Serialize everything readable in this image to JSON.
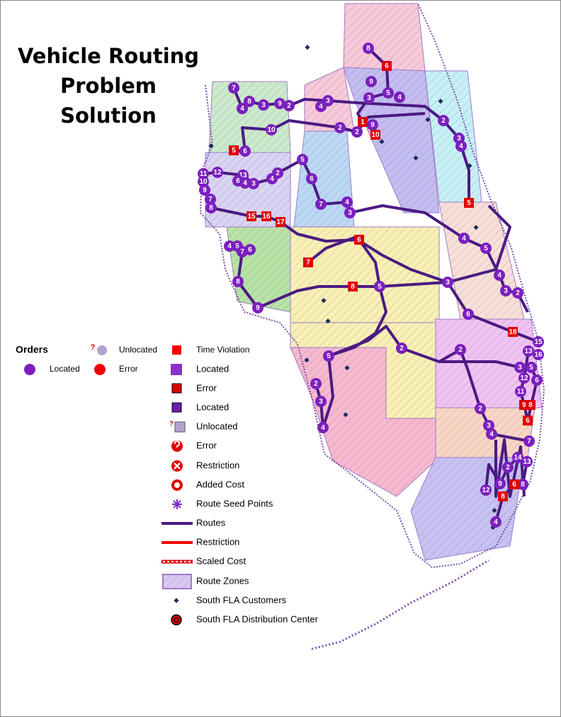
{
  "title": "Vehicle Routing Problem Solution",
  "legend": {
    "heading": "Orders",
    "question_mark": "?",
    "orders": [
      "Unlocated",
      "Located",
      "Error"
    ],
    "items": [
      "Time Violation",
      "Located",
      "Error",
      "Located",
      "Unlocated",
      "Error",
      "Restriction",
      "Added Cost",
      "Route Seed Points",
      "Routes",
      "Restriction",
      "Scaled Cost",
      "Route Zones",
      "South FLA Customers",
      "South FLA Distribution Center"
    ]
  },
  "stops": [
    {
      "label": "8",
      "kind": "order"
    },
    {
      "label": "6",
      "kind": "violation"
    },
    {
      "label": "9",
      "kind": "order"
    },
    {
      "label": "3",
      "kind": "order"
    },
    {
      "label": "5",
      "kind": "order"
    },
    {
      "label": "4",
      "kind": "order"
    },
    {
      "label": "3",
      "kind": "order"
    },
    {
      "label": "4",
      "kind": "order"
    },
    {
      "label": "2",
      "kind": "order"
    },
    {
      "label": "9",
      "kind": "order"
    },
    {
      "label": "3",
      "kind": "order"
    },
    {
      "label": "8",
      "kind": "order"
    },
    {
      "label": "4",
      "kind": "order"
    },
    {
      "label": "7",
      "kind": "order"
    },
    {
      "label": "10",
      "kind": "order"
    },
    {
      "label": "5",
      "kind": "violation"
    },
    {
      "label": "6",
      "kind": "order"
    },
    {
      "label": "2",
      "kind": "order"
    },
    {
      "label": "2",
      "kind": "order"
    },
    {
      "label": "1",
      "kind": "violation"
    },
    {
      "label": "9",
      "kind": "order"
    },
    {
      "label": "10",
      "kind": "violation"
    },
    {
      "label": "2",
      "kind": "order"
    },
    {
      "label": "3",
      "kind": "order"
    },
    {
      "label": "4",
      "kind": "order"
    },
    {
      "label": "5",
      "kind": "order"
    },
    {
      "label": "6",
      "kind": "order"
    },
    {
      "label": "2",
      "kind": "order"
    },
    {
      "label": "4",
      "kind": "order"
    },
    {
      "label": "11",
      "kind": "order"
    },
    {
      "label": "12",
      "kind": "order"
    },
    {
      "label": "10",
      "kind": "order"
    },
    {
      "label": "13",
      "kind": "order"
    },
    {
      "label": "6",
      "kind": "order"
    },
    {
      "label": "4",
      "kind": "order"
    },
    {
      "label": "3",
      "kind": "order"
    },
    {
      "label": "9",
      "kind": "order"
    },
    {
      "label": "7",
      "kind": "order"
    },
    {
      "label": "8",
      "kind": "order"
    },
    {
      "label": "7",
      "kind": "order"
    },
    {
      "label": "4",
      "kind": "order"
    },
    {
      "label": "3",
      "kind": "order"
    },
    {
      "label": "15",
      "kind": "violation"
    },
    {
      "label": "16",
      "kind": "violation"
    },
    {
      "label": "17",
      "kind": "violation"
    },
    {
      "label": "6",
      "kind": "violation"
    },
    {
      "label": "5",
      "kind": "violation"
    },
    {
      "label": "4",
      "kind": "order"
    },
    {
      "label": "5",
      "kind": "order"
    },
    {
      "label": "4",
      "kind": "order"
    },
    {
      "label": "5",
      "kind": "order"
    },
    {
      "label": "7",
      "kind": "order"
    },
    {
      "label": "6",
      "kind": "order"
    },
    {
      "label": "7",
      "kind": "violation"
    },
    {
      "label": "4",
      "kind": "order"
    },
    {
      "label": "8",
      "kind": "violation"
    },
    {
      "label": "5",
      "kind": "order"
    },
    {
      "label": "3",
      "kind": "order"
    },
    {
      "label": "3",
      "kind": "order"
    },
    {
      "label": "2",
      "kind": "order"
    },
    {
      "label": "8",
      "kind": "order"
    },
    {
      "label": "9",
      "kind": "order"
    },
    {
      "label": "6",
      "kind": "order"
    },
    {
      "label": "18",
      "kind": "violation"
    },
    {
      "label": "15",
      "kind": "order"
    },
    {
      "label": "13",
      "kind": "order"
    },
    {
      "label": "16",
      "kind": "order"
    },
    {
      "label": "2",
      "kind": "order"
    },
    {
      "label": "2",
      "kind": "order"
    },
    {
      "label": "5",
      "kind": "order"
    },
    {
      "label": "3",
      "kind": "order"
    },
    {
      "label": "5",
      "kind": "order"
    },
    {
      "label": "12",
      "kind": "order"
    },
    {
      "label": "6",
      "kind": "order"
    },
    {
      "label": "11",
      "kind": "order"
    },
    {
      "label": "9",
      "kind": "violation"
    },
    {
      "label": "8",
      "kind": "violation"
    },
    {
      "label": "6",
      "kind": "violation"
    },
    {
      "label": "2",
      "kind": "order"
    },
    {
      "label": "3",
      "kind": "order"
    },
    {
      "label": "4",
      "kind": "order"
    },
    {
      "label": "2",
      "kind": "order"
    },
    {
      "label": "3",
      "kind": "order"
    },
    {
      "label": "4",
      "kind": "order"
    },
    {
      "label": "7",
      "kind": "order"
    },
    {
      "label": "14",
      "kind": "order"
    },
    {
      "label": "13",
      "kind": "order"
    },
    {
      "label": "2",
      "kind": "order"
    },
    {
      "label": "9",
      "kind": "order"
    },
    {
      "label": "8",
      "kind": "order"
    },
    {
      "label": "6",
      "kind": "violation"
    },
    {
      "label": "12",
      "kind": "order"
    },
    {
      "label": "8",
      "kind": "violation"
    },
    {
      "label": "4",
      "kind": "order"
    }
  ]
}
